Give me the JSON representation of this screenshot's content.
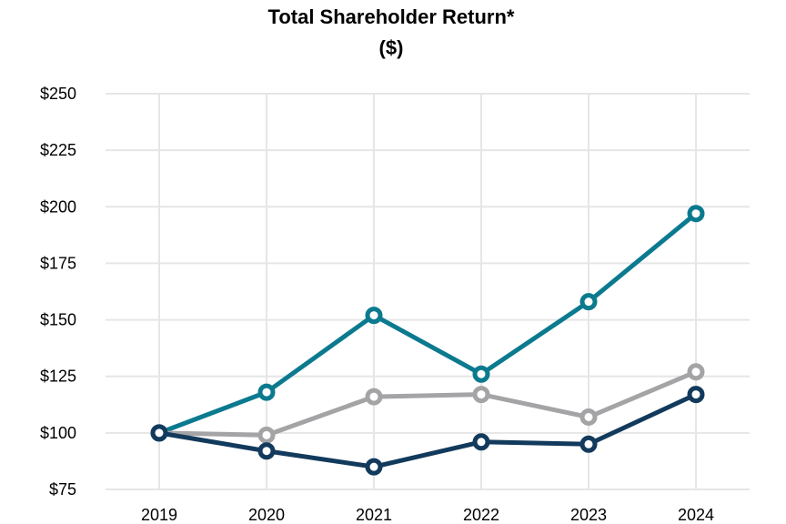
{
  "chart_data": {
    "type": "line",
    "title": "Total Shareholder Return*",
    "subtitle": "($)",
    "xlabel": "",
    "ylabel": "",
    "x": [
      "2019",
      "2020",
      "2021",
      "2022",
      "2023",
      "2024"
    ],
    "yticks": [
      "$75",
      "$100",
      "$125",
      "$150",
      "$175",
      "$200",
      "$225",
      "$250"
    ],
    "ylim": [
      75,
      250
    ],
    "grid": true,
    "legend": "none",
    "series": [
      {
        "name": "teal series",
        "color": "#0b7a8f",
        "values": [
          100,
          118,
          152,
          126,
          158,
          197
        ]
      },
      {
        "name": "gray series",
        "color": "#a4a4a6",
        "values": [
          100,
          99,
          116,
          117,
          107,
          127
        ]
      },
      {
        "name": "navy series",
        "color": "#123a5c",
        "values": [
          100,
          92,
          85,
          96,
          95,
          117
        ]
      }
    ]
  }
}
